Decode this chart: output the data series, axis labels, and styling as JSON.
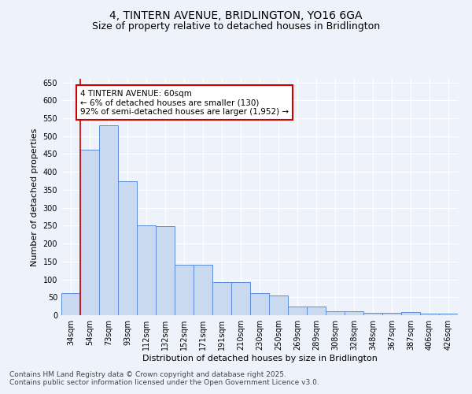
{
  "title": "4, TINTERN AVENUE, BRIDLINGTON, YO16 6GA",
  "subtitle": "Size of property relative to detached houses in Bridlington",
  "xlabel": "Distribution of detached houses by size in Bridlington",
  "ylabel": "Number of detached properties",
  "categories": [
    "34sqm",
    "54sqm",
    "73sqm",
    "93sqm",
    "112sqm",
    "132sqm",
    "152sqm",
    "171sqm",
    "191sqm",
    "210sqm",
    "230sqm",
    "250sqm",
    "269sqm",
    "289sqm",
    "308sqm",
    "328sqm",
    "348sqm",
    "367sqm",
    "387sqm",
    "406sqm",
    "426sqm"
  ],
  "values": [
    62,
    462,
    530,
    375,
    250,
    248,
    140,
    140,
    93,
    93,
    62,
    55,
    25,
    25,
    10,
    10,
    6,
    6,
    8,
    4,
    4
  ],
  "bar_color": "#c9d9f0",
  "bar_edge_color": "#5b8dd9",
  "red_line_x": 1,
  "annotation_line1": "4 TINTERN AVENUE: 60sqm",
  "annotation_line2": "← 6% of detached houses are smaller (130)",
  "annotation_line3": "92% of semi-detached houses are larger (1,952) →",
  "annotation_box_color": "#ffffff",
  "annotation_box_edge_color": "#cc0000",
  "ylim": [
    0,
    660
  ],
  "yticks": [
    0,
    50,
    100,
    150,
    200,
    250,
    300,
    350,
    400,
    450,
    500,
    550,
    600,
    650
  ],
  "footer": "Contains HM Land Registry data © Crown copyright and database right 2025.\nContains public sector information licensed under the Open Government Licence v3.0.",
  "bg_color": "#eef2fa",
  "plot_bg_color": "#eef2fa",
  "grid_color": "#ffffff",
  "red_line_color": "#cc0000",
  "title_fontsize": 10,
  "subtitle_fontsize": 9,
  "axis_label_fontsize": 8,
  "tick_fontsize": 7,
  "annotation_fontsize": 7.5,
  "footer_fontsize": 6.5
}
